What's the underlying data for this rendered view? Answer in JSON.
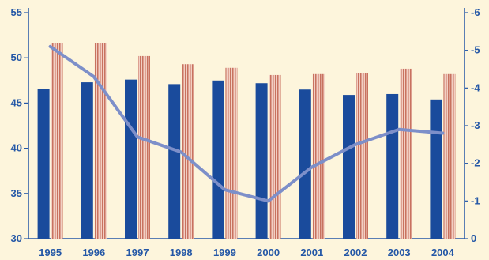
{
  "chart_data": {
    "type": "bar",
    "title": "",
    "xlabel": "",
    "ylabel": "",
    "categories": [
      "1995",
      "1996",
      "1997",
      "1998",
      "1999",
      "2000",
      "2001",
      "2002",
      "2003",
      "2004"
    ],
    "series": [
      {
        "type": "bar",
        "axis": "left",
        "color": "#1a4b9c",
        "values": [
          46.6,
          47.3,
          47.6,
          47.1,
          47.5,
          47.2,
          46.5,
          45.9,
          46.0,
          45.4
        ]
      },
      {
        "type": "bar",
        "axis": "left",
        "color": "#d99a8c",
        "pattern": "vertical-stripes",
        "values": [
          51.6,
          51.6,
          50.2,
          49.3,
          48.9,
          48.1,
          48.2,
          48.3,
          48.8,
          48.2
        ]
      },
      {
        "type": "line",
        "axis": "right",
        "color": "#7d8fc9",
        "values": [
          -5.1,
          -4.3,
          -2.7,
          -2.3,
          -1.3,
          -1.0,
          -1.9,
          -2.5,
          -2.9,
          -2.8
        ]
      }
    ],
    "y_left": {
      "ylim": [
        30,
        55
      ],
      "ticks": [
        30,
        35,
        40,
        45,
        50,
        55
      ]
    },
    "y_right": {
      "ylim": [
        0,
        -6
      ],
      "ticks": [
        0,
        -1,
        -2,
        -3,
        -4,
        -5,
        -6
      ],
      "inverted": true
    },
    "grid": false,
    "legend": "none"
  }
}
